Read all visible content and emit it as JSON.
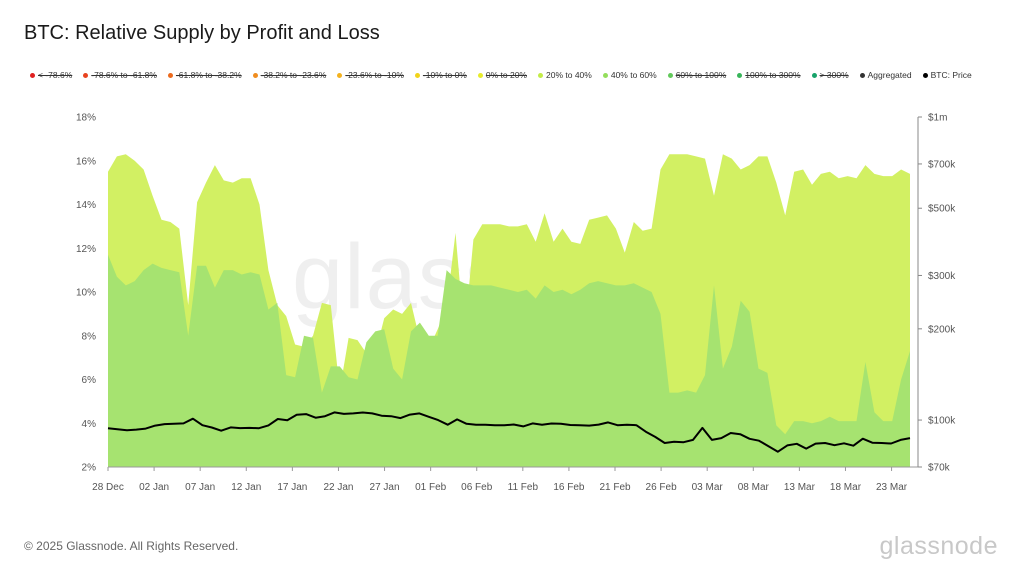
{
  "header": {
    "title": "BTC: Relative Supply by Profit and Loss"
  },
  "legend": [
    {
      "label": "< -78.6%",
      "color": "#e02020",
      "hidden": true
    },
    {
      "label": "-78.6% to -61.8%",
      "color": "#e8431f",
      "hidden": true
    },
    {
      "label": "-61.8% to -38.2%",
      "color": "#ec6a1d",
      "hidden": true
    },
    {
      "label": "-38.2% to -23.6%",
      "color": "#f08d1f",
      "hidden": true
    },
    {
      "label": "-23.6% to -10%",
      "color": "#f4b21e",
      "hidden": true
    },
    {
      "label": "-10% to 0%",
      "color": "#f2d41a",
      "hidden": true
    },
    {
      "label": "0% to 20%",
      "color": "#e7ec2b",
      "hidden": true
    },
    {
      "label": "20% to 40%",
      "color": "#c3ec47",
      "hidden": false
    },
    {
      "label": "40% to 60%",
      "color": "#94de5c",
      "hidden": false
    },
    {
      "label": "60% to 100%",
      "color": "#62c95b",
      "hidden": true
    },
    {
      "label": "100% to 300%",
      "color": "#38b55a",
      "hidden": true
    },
    {
      "label": "> 300%",
      "color": "#17a36a",
      "hidden": true
    },
    {
      "label": "Aggregated",
      "color": "#333333",
      "hidden": false
    },
    {
      "label": "BTC: Price",
      "color": "#000000",
      "hidden": false
    }
  ],
  "footer": {
    "copyright": "© 2025 Glassnode. All Rights Reserved.",
    "brand": "glassnode",
    "watermark": "glassnode"
  },
  "chart_data": {
    "type": "area",
    "title": "BTC: Relative Supply by Profit and Loss",
    "x_tick_labels": [
      "28 Dec",
      "02 Jan",
      "07 Jan",
      "12 Jan",
      "17 Jan",
      "22 Jan",
      "27 Jan",
      "01 Feb",
      "06 Feb",
      "11 Feb",
      "16 Feb",
      "21 Feb",
      "26 Feb",
      "03 Mar",
      "08 Mar",
      "13 Mar",
      "18 Mar",
      "23 Mar"
    ],
    "x_range": [
      "2024-12-28",
      "2025-03-25"
    ],
    "y_left": {
      "ticks": [
        "2%",
        "4%",
        "6%",
        "8%",
        "10%",
        "12%",
        "14%",
        "16%",
        "18%"
      ],
      "range": [
        2,
        18
      ],
      "unit": "%"
    },
    "y_right": {
      "ticks": [
        "$70k",
        "$100k",
        "$200k",
        "$300k",
        "$500k",
        "$700k",
        "$1m"
      ],
      "tick_values": [
        70000,
        100000,
        200000,
        300000,
        500000,
        700000,
        1000000
      ],
      "scale": "log",
      "range": [
        70000,
        1000000
      ]
    },
    "grid": false,
    "legend_position": "top",
    "series": [
      {
        "name": "20% to 40%",
        "color": "#d2f063",
        "stacked_top": true,
        "values": [
          15.5,
          16.2,
          16.3,
          16.0,
          15.6,
          14.4,
          13.3,
          13.2,
          12.9,
          9.4,
          14.1,
          15.0,
          15.8,
          15.1,
          15.0,
          15.2,
          15.2,
          14.0,
          11.0,
          9.4,
          8.9,
          7.6,
          7.5,
          8.0,
          9.5,
          9.4,
          5.5,
          7.9,
          7.8,
          7.2,
          7.2,
          8.8,
          9.2,
          9.0,
          9.5,
          7.8,
          7.4,
          8.3,
          9.3,
          12.7,
          8.0,
          12.4,
          13.1,
          13.1,
          13.1,
          13.0,
          13.0,
          13.1,
          12.3,
          13.6,
          12.3,
          12.9,
          12.3,
          12.2,
          13.3,
          13.4,
          13.5,
          12.9,
          11.8,
          13.2,
          12.8,
          12.9,
          15.6,
          16.3,
          16.3,
          16.3,
          16.2,
          16.1,
          14.4,
          16.3,
          16.1,
          15.6,
          15.8,
          16.2,
          16.2,
          15.0,
          13.5,
          15.5,
          15.6,
          14.9,
          15.4,
          15.5,
          15.2,
          15.3,
          15.2,
          15.8,
          15.4,
          15.3,
          15.3,
          15.6,
          15.4
        ]
      },
      {
        "name": "40% to 60%",
        "color": "#a6e370",
        "values": [
          11.7,
          10.7,
          10.3,
          10.5,
          11.0,
          11.3,
          11.1,
          11.0,
          10.9,
          8.0,
          11.2,
          11.2,
          10.2,
          11.0,
          11.0,
          10.8,
          10.9,
          10.8,
          9.2,
          9.5,
          6.2,
          6.1,
          8.0,
          7.9,
          5.4,
          6.6,
          6.6,
          6.1,
          6.0,
          7.7,
          8.2,
          8.3,
          6.5,
          6.0,
          8.2,
          8.6,
          8.0,
          8.0,
          11.0,
          10.6,
          10.4,
          10.3,
          10.3,
          10.3,
          10.2,
          10.1,
          10.0,
          10.1,
          9.7,
          10.3,
          10.0,
          10.1,
          9.9,
          10.1,
          10.4,
          10.5,
          10.4,
          10.3,
          10.3,
          10.4,
          10.2,
          10.0,
          9.0,
          5.4,
          5.4,
          5.5,
          5.4,
          6.2,
          10.3,
          6.5,
          7.5,
          9.6,
          9.1,
          6.5,
          6.3,
          3.9,
          3.5,
          4.1,
          4.1,
          4.0,
          4.1,
          4.3,
          4.1,
          4.1,
          4.1,
          6.8,
          4.5,
          4.1,
          4.1,
          6.0,
          7.3
        ]
      },
      {
        "name": "BTC: Price",
        "color": "#000000",
        "axis": "right",
        "values": [
          94000,
          93200,
          92500,
          93000,
          93700,
          95900,
          97000,
          97200,
          97500,
          101000,
          96200,
          94500,
          92200,
          94600,
          94100,
          94200,
          94000,
          96000,
          100800,
          99800,
          104100,
          104600,
          101800,
          103000,
          106000,
          104800,
          105200,
          105900,
          105200,
          103400,
          103000,
          101500,
          104200,
          105200,
          102500,
          100000,
          96500,
          100500,
          97200,
          96500,
          96500,
          96200,
          96100,
          96700,
          95300,
          97500,
          96500,
          97400,
          97200,
          96300,
          96100,
          95900,
          96600,
          98200,
          96200,
          96500,
          96200,
          91500,
          88000,
          84000,
          84800,
          84500,
          86000,
          94200,
          86000,
          87200,
          90600,
          89800,
          86700,
          85500,
          82000,
          78600,
          82500,
          83500,
          80500,
          83600,
          84000,
          82600,
          83800,
          82300,
          86800,
          84200,
          84000,
          83700,
          86000,
          87200
        ]
      }
    ]
  }
}
